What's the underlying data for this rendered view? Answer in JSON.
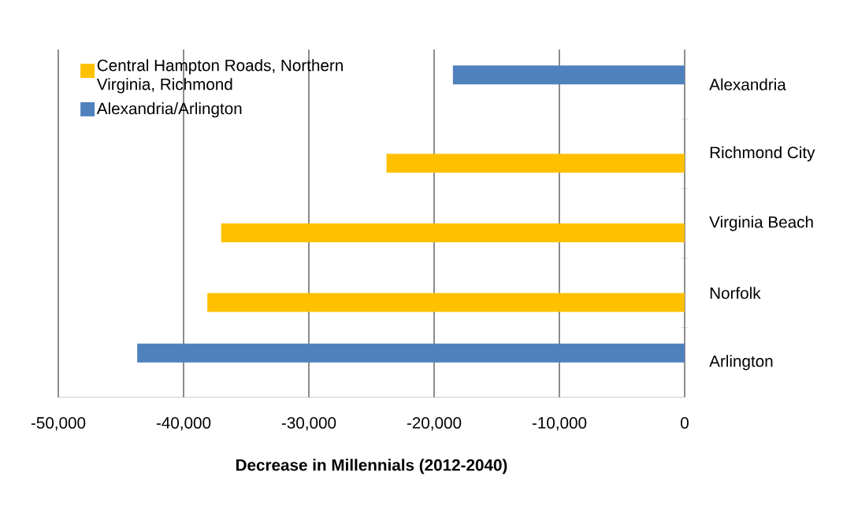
{
  "chart_data": {
    "type": "bar",
    "orientation": "horizontal",
    "xlabel": "Decrease in Millennials (2012-2040)",
    "categories": [
      "Alexandria",
      "Richmond City",
      "Virginia Beach",
      "Norfolk",
      "Arlington"
    ],
    "series": [
      {
        "name": "Central Hampton Roads, Northern Virginia, Richmond",
        "color": "#ffc000",
        "values": [
          null,
          -23800,
          -37000,
          -38100,
          null
        ]
      },
      {
        "name": "Alexandria/Arlington",
        "color": "#4f81bd",
        "values": [
          -18500,
          null,
          null,
          null,
          -43700
        ]
      }
    ],
    "xlim": [
      -50000,
      0
    ],
    "xticks": [
      {
        "value": -50000,
        "label": "-50,000"
      },
      {
        "value": -40000,
        "label": "-40,000"
      },
      {
        "value": -30000,
        "label": "-30,000"
      },
      {
        "value": -20000,
        "label": "-20,000"
      },
      {
        "value": -10000,
        "label": "-10,000"
      },
      0
    ],
    "grid": "x",
    "legend": "top left"
  }
}
